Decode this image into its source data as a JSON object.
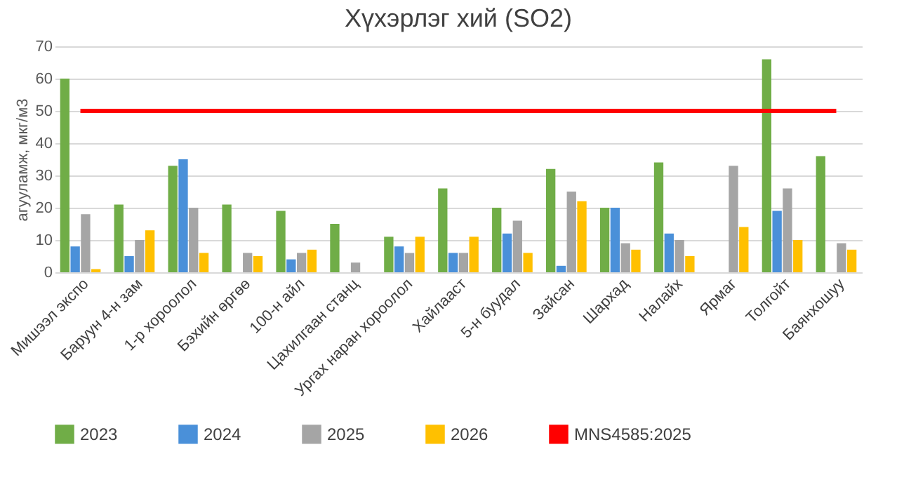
{
  "chart_data": {
    "type": "bar",
    "title": "Хүхэрлэг хий (SO2)",
    "ylabel": "агууламж, мкг/м3",
    "categories": [
      "Мишээл экспо",
      "Баруун 4-н зам",
      "1-р хороолол",
      "Бэхийн өргөө",
      "100-н айл",
      "Цахилгаан станц",
      "Ургах наран хороолол",
      "Хайлааст",
      "5-н буудал",
      "Зайсан",
      "Шархад",
      "Налайх",
      "Ярмаг",
      "Толгойт",
      "Баянхошуу"
    ],
    "series": [
      {
        "name": "2023",
        "color": "#70ad47",
        "values": [
          60,
          21,
          33,
          21,
          19,
          15,
          11,
          26,
          20,
          32,
          20,
          34,
          null,
          66,
          36
        ]
      },
      {
        "name": "2024",
        "color": "#4a90d9",
        "values": [
          8,
          5,
          35,
          null,
          4,
          null,
          8,
          6,
          12,
          2,
          20,
          12,
          null,
          19,
          null
        ]
      },
      {
        "name": "2025",
        "color": "#a5a5a5",
        "values": [
          18,
          10,
          20,
          6,
          6,
          3,
          6,
          6,
          16,
          25,
          9,
          10,
          33,
          26,
          9
        ]
      },
      {
        "name": "2026",
        "color": "#ffc000",
        "values": [
          1,
          13,
          6,
          5,
          7,
          null,
          11,
          11,
          6,
          22,
          7,
          5,
          14,
          10,
          7
        ]
      },
      {
        "name": "MNS4585:2025",
        "type": "line",
        "color": "#ff0000",
        "values": [
          50,
          50,
          50,
          50,
          50,
          50,
          50,
          50,
          50,
          50,
          50,
          50,
          50,
          50,
          50
        ]
      }
    ],
    "ylim": [
      0,
      70
    ],
    "yticks": [
      0,
      10,
      20,
      30,
      40,
      50,
      60,
      70
    ],
    "grid": "y",
    "legend": "bottom"
  }
}
